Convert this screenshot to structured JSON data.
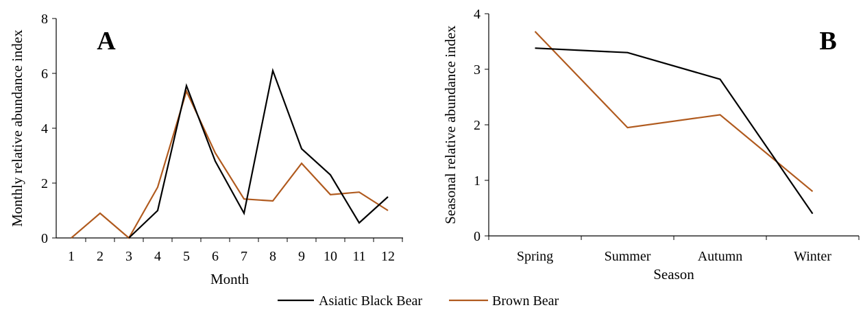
{
  "legend": [
    {
      "name": "Asiatic Black Bear",
      "color": "#000000"
    },
    {
      "name": "Brown Bear",
      "color": "#b05a1e"
    }
  ],
  "chart_data": [
    {
      "type": "line",
      "panel_label": "A",
      "xlabel": "Month",
      "ylabel": "Monthly relative  abundance index",
      "categories": [
        "1",
        "2",
        "3",
        "4",
        "5",
        "6",
        "7",
        "8",
        "9",
        "10",
        "11",
        "12"
      ],
      "yticks": [
        "0",
        "2",
        "4",
        "6",
        "8"
      ],
      "ylim": [
        0,
        8
      ],
      "series": [
        {
          "name": "Asiatic Black Bear",
          "color": "#000000",
          "values": [
            null,
            null,
            0,
            1.0,
            5.55,
            2.8,
            0.9,
            6.1,
            3.25,
            2.3,
            0.55,
            1.5
          ]
        },
        {
          "name": "Brown Bear",
          "color": "#b05a1e",
          "values": [
            0,
            0.9,
            0,
            1.85,
            5.35,
            3.1,
            1.42,
            1.35,
            2.72,
            1.58,
            1.67,
            1.0
          ]
        }
      ]
    },
    {
      "type": "line",
      "panel_label": "B",
      "xlabel": "Season",
      "ylabel": "Seasonal relative  abundance index",
      "categories": [
        "Spring",
        "Summer",
        "Autumn",
        "Winter"
      ],
      "yticks": [
        "0",
        "1",
        "2",
        "3",
        "4"
      ],
      "ylim": [
        0,
        4
      ],
      "series": [
        {
          "name": "Asiatic Black Bear",
          "color": "#000000",
          "values": [
            3.38,
            3.3,
            2.82,
            0.4
          ]
        },
        {
          "name": "Brown Bear",
          "color": "#b05a1e",
          "values": [
            3.68,
            1.95,
            2.18,
            0.8
          ]
        }
      ]
    }
  ]
}
